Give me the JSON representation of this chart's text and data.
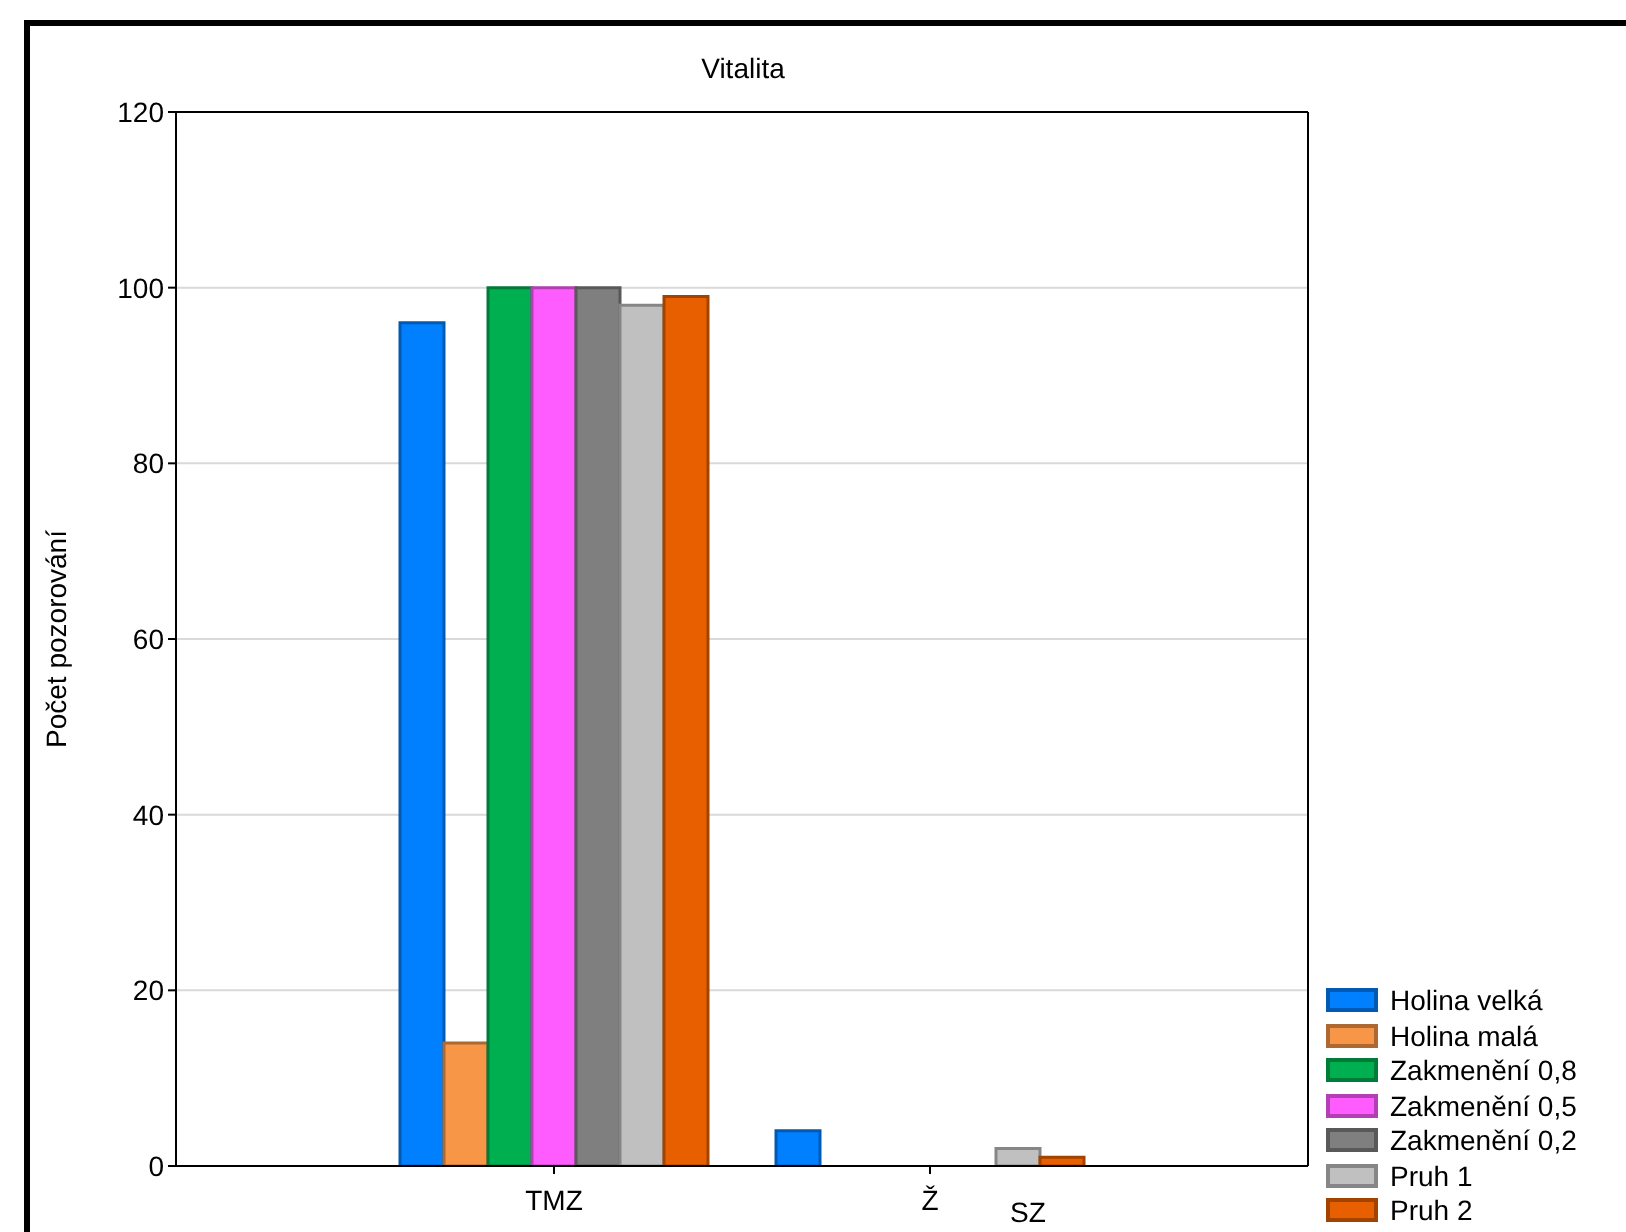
{
  "chart_data": {
    "type": "bar",
    "title": "Vitalita",
    "ylabel": "Počet pozorování",
    "categories": [
      "TMZ",
      "Ž SZ"
    ],
    "series": [
      {
        "name": "Holina velká",
        "color": "#0080ff",
        "values": [
          96,
          4
        ]
      },
      {
        "name": "Holina malá",
        "color": "#f79646",
        "values": [
          14,
          0
        ]
      },
      {
        "name": "Zakmenění 0,8",
        "color": "#00b050",
        "values": [
          100,
          0
        ]
      },
      {
        "name": "Zakmenění 0,5",
        "color": "#ff5cff",
        "values": [
          100,
          0
        ]
      },
      {
        "name": "Zakmenění 0,2",
        "color": "#7f7f7f",
        "values": [
          100,
          0
        ]
      },
      {
        "name": "Pruh 1",
        "color": "#c0c0c0",
        "values": [
          98,
          2
        ]
      },
      {
        "name": "Pruh 2",
        "color": "#e85f00",
        "values": [
          99,
          1
        ]
      }
    ],
    "ylim": [
      0,
      120
    ],
    "yticks": [
      0,
      20,
      40,
      60,
      80,
      100,
      120
    ],
    "grid": "y",
    "legend": "bottom right"
  }
}
